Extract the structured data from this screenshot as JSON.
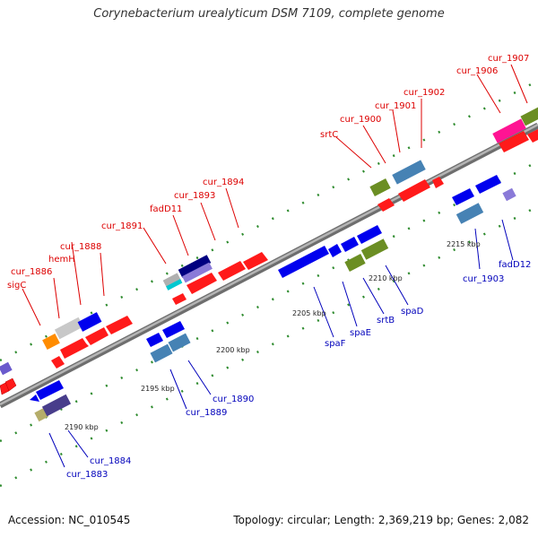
{
  "title": "Corynebacterium urealyticum DSM 7109, complete genome",
  "footer": {
    "accession": "Accession: NC_010545",
    "topology": "Topology: circular; Length: 2,369,219 bp; Genes: 2,082"
  },
  "colors": {
    "forward_label": "#dd0000",
    "reverse_label": "#0000bb",
    "backbone": "#8c8c8c",
    "tick_dots": "#2e8b2e"
  },
  "ticks": [
    "2190 kbp",
    "2195 kbp",
    "2200 kbp",
    "2205 kbp",
    "2210 kbp",
    "2215 kbp"
  ],
  "genes_top": [
    {
      "name": "sigC"
    },
    {
      "name": "cur_1886"
    },
    {
      "name": "hemH"
    },
    {
      "name": "cur_1888"
    },
    {
      "name": "cur_1891"
    },
    {
      "name": "fadD11"
    },
    {
      "name": "cur_1893"
    },
    {
      "name": "cur_1894"
    },
    {
      "name": "srtC"
    },
    {
      "name": "cur_1900"
    },
    {
      "name": "cur_1901"
    },
    {
      "name": "cur_1902"
    },
    {
      "name": "cur_1906"
    },
    {
      "name": "cur_1907"
    }
  ],
  "genes_bottom": [
    {
      "name": "cur_1883"
    },
    {
      "name": "cur_1884"
    },
    {
      "name": "cur_1889"
    },
    {
      "name": "cur_1890"
    },
    {
      "name": "spaF"
    },
    {
      "name": "spaE"
    },
    {
      "name": "srtB"
    },
    {
      "name": "spaD"
    },
    {
      "name": "cur_1903"
    },
    {
      "name": "fadD12"
    }
  ]
}
